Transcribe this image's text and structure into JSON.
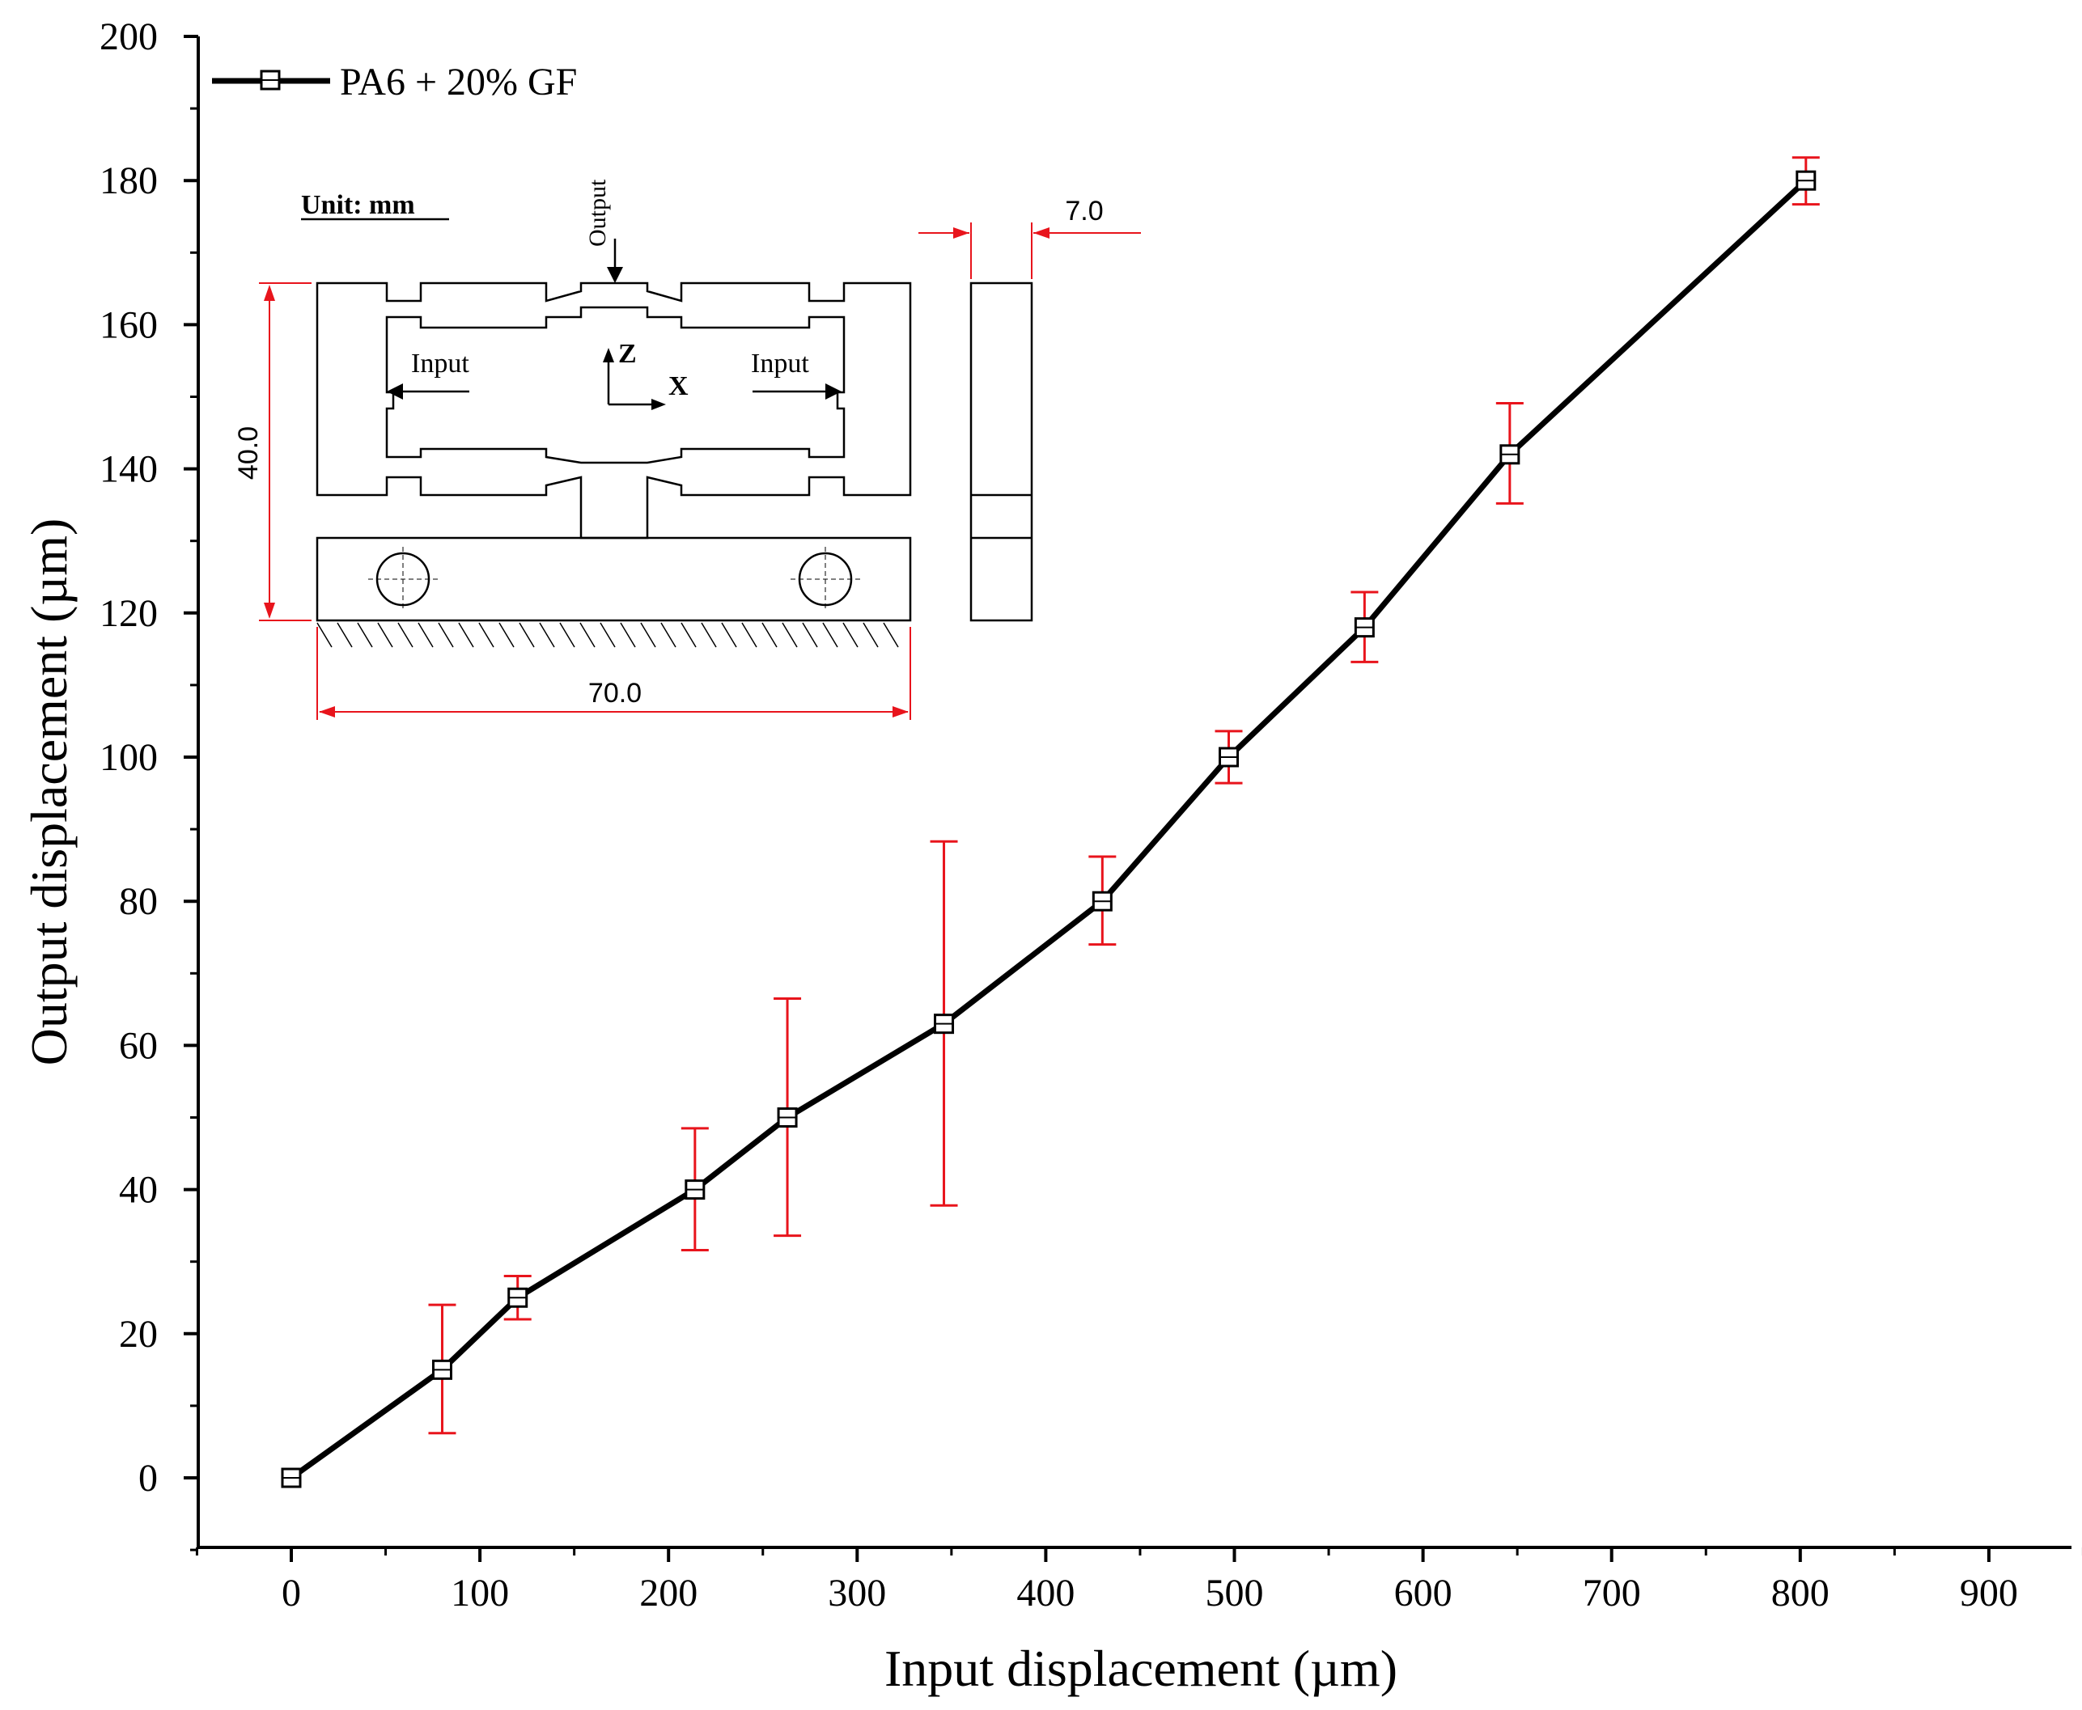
{
  "chart_data": {
    "type": "line",
    "title": "",
    "xlabel": "Input displacement (µm)",
    "ylabel": "Output displacement (µm)",
    "xlim": [
      -50,
      950
    ],
    "ylim": [
      -10,
      200
    ],
    "x_ticks": [
      0,
      100,
      200,
      300,
      400,
      500,
      600,
      700,
      800,
      900
    ],
    "y_ticks": [
      0,
      20,
      40,
      60,
      80,
      100,
      120,
      140,
      160,
      180,
      200
    ],
    "grid": false,
    "legend_position": "top-left",
    "series": [
      {
        "name": "PA6 + 20% GF",
        "color": "#000000",
        "marker": "open-square",
        "error_bar_color": "#e8141c",
        "points": [
          {
            "x": 0,
            "y": 0,
            "err_low": 0,
            "err_high": 0
          },
          {
            "x": 80,
            "y": 15,
            "err_low": 6.2,
            "err_high": 24
          },
          {
            "x": 120,
            "y": 25,
            "err_low": 22,
            "err_high": 28
          },
          {
            "x": 214,
            "y": 40,
            "err_low": 31.6,
            "err_high": 48.5
          },
          {
            "x": 263,
            "y": 50,
            "err_low": 33.6,
            "err_high": 66.5
          },
          {
            "x": 346,
            "y": 63,
            "err_low": 37.8,
            "err_high": 88.3
          },
          {
            "x": 430,
            "y": 80,
            "err_low": 74,
            "err_high": 86.2
          },
          {
            "x": 497,
            "y": 100,
            "err_low": 96.4,
            "err_high": 103.6
          },
          {
            "x": 569,
            "y": 118,
            "err_low": 113.2,
            "err_high": 122.9
          },
          {
            "x": 646,
            "y": 142,
            "err_low": 135.2,
            "err_high": 149.1
          },
          {
            "x": 803,
            "y": 180,
            "err_low": 176.7,
            "err_high": 183.2
          }
        ]
      }
    ]
  },
  "inset": {
    "unit_label": "Unit: mm",
    "output_label": "Output",
    "input_left_label": "Input",
    "input_right_label": "Input",
    "axis_z_label": "Z",
    "axis_x_label": "X",
    "dim_height": "40.0",
    "dim_width": "70.0",
    "dim_thickness": "7.0",
    "dimension_color": "#e8141c"
  }
}
